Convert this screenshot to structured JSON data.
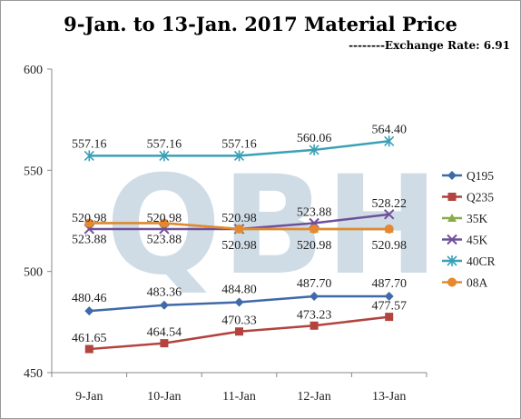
{
  "header": {
    "title": "9-Jan. to 13-Jan. 2017 Material Price",
    "subtitle": "--------Exchange Rate: 6.91"
  },
  "watermark": {
    "text": "QBH",
    "color": "#a9c0d2"
  },
  "chart_data": {
    "type": "line",
    "title": "9-Jan. to 13-Jan. 2017 Material Price",
    "subtitle": "--------Exchange Rate: 6.91",
    "categories": [
      "9-Jan",
      "10-Jan",
      "11-Jan",
      "12-Jan",
      "13-Jan"
    ],
    "ylim": [
      450,
      600
    ],
    "yticks": [
      "450",
      "500",
      "550",
      "600"
    ],
    "grid": false,
    "legend": "right",
    "series": [
      {
        "name": "Q195",
        "color": "#3f69a8",
        "marker": "diamond",
        "values": [
          480.46,
          483.36,
          484.8,
          487.7,
          487.7
        ],
        "labels": [
          "480.46",
          "483.36",
          "484.80",
          "487.70",
          "487.70"
        ]
      },
      {
        "name": "Q235",
        "color": "#b2433f",
        "marker": "square",
        "values": [
          461.65,
          464.54,
          470.33,
          473.23,
          477.57
        ],
        "labels": [
          "461.65",
          "464.54",
          "470.33",
          "473.23",
          "477.57"
        ]
      },
      {
        "name": "35K",
        "color": "#8aab45",
        "marker": "triangle",
        "values": [
          523.88,
          523.88,
          520.98,
          520.98,
          520.98
        ],
        "labels": [
          "523.88",
          "523.88",
          "520.98",
          "520.98",
          "520.98"
        ]
      },
      {
        "name": "45K",
        "color": "#6f509a",
        "marker": "x",
        "values": [
          520.98,
          520.98,
          520.98,
          523.88,
          528.22
        ],
        "labels": [
          "520.98",
          "520.98",
          "520.98",
          "523.88",
          "528.22"
        ]
      },
      {
        "name": "40CR",
        "color": "#3aa0b6",
        "marker": "star",
        "values": [
          557.16,
          557.16,
          557.16,
          560.06,
          564.4
        ],
        "labels": [
          "557.16",
          "557.16",
          "557.16",
          "560.06",
          "564.40"
        ]
      },
      {
        "name": "08A",
        "color": "#e6882f",
        "marker": "circle",
        "values": [
          523.88,
          523.88,
          520.98,
          520.98,
          520.98
        ],
        "labels": []
      }
    ]
  }
}
